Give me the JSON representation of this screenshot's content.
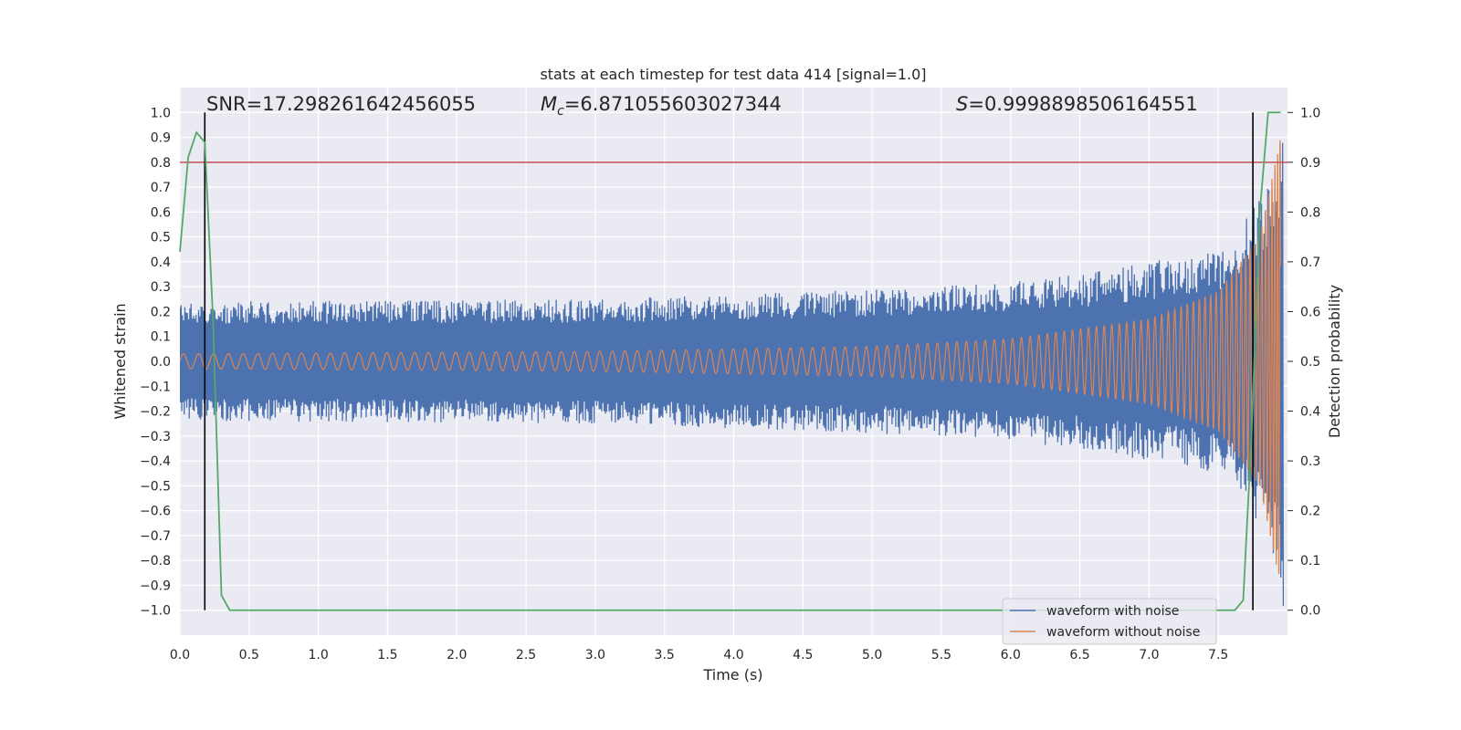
{
  "chart_data": {
    "type": "line",
    "title": "stats at each timestep for test data 414 [signal=1.0]",
    "xlabel": "Time (s)",
    "ylabel_left": "Whitened strain",
    "ylabel_right": "Detection probability",
    "xlim": [
      0.0,
      8.0
    ],
    "ylim_left": [
      -1.1,
      1.1
    ],
    "ylim_right": [
      -0.05,
      1.05
    ],
    "x_ticks": [
      "0.0",
      "0.5",
      "1.0",
      "1.5",
      "2.0",
      "2.5",
      "3.0",
      "3.5",
      "4.0",
      "4.5",
      "5.0",
      "5.5",
      "6.0",
      "6.5",
      "7.0",
      "7.5"
    ],
    "y_ticks_left": [
      "1.0",
      "0.9",
      "0.8",
      "0.7",
      "0.6",
      "0.5",
      "0.4",
      "0.3",
      "0.2",
      "0.1",
      "0.0",
      "−0.1",
      "−0.2",
      "−0.3",
      "−0.4",
      "−0.5",
      "−0.6",
      "−0.7",
      "−0.8",
      "−0.9",
      "−1.0"
    ],
    "y_ticks_right": [
      "1.0",
      "0.9",
      "0.8",
      "0.7",
      "0.6",
      "0.5",
      "0.4",
      "0.3",
      "0.2",
      "0.1",
      "0.0"
    ],
    "grid": true,
    "legend_position": "lower-right",
    "annotations": {
      "snr": "SNR=17.298261642456055",
      "mc_symbol": "M",
      "mc_sub": "c",
      "mc_value": "=6.871055603027344",
      "s_symbol": "S",
      "s_value": "=0.9998898506164551"
    },
    "vlines_x": [
      0.18,
      7.75
    ],
    "threshold_probability": 0.9,
    "series": [
      {
        "name": "waveform with noise",
        "color": "#4c72b0",
        "envelope": [
          {
            "x": 0.0,
            "amp": 0.24
          },
          {
            "x": 3.0,
            "amp": 0.25
          },
          {
            "x": 5.5,
            "amp": 0.3
          },
          {
            "x": 6.5,
            "amp": 0.35
          },
          {
            "x": 7.5,
            "amp": 0.45
          },
          {
            "x": 7.85,
            "amp": 0.7
          },
          {
            "x": 7.97,
            "amp": 1.0
          }
        ]
      },
      {
        "name": "waveform without noise",
        "color": "#dd8452",
        "envelope": [
          {
            "x": 0.0,
            "amp": 0.03
          },
          {
            "x": 3.0,
            "amp": 0.04
          },
          {
            "x": 5.0,
            "amp": 0.06
          },
          {
            "x": 6.0,
            "amp": 0.09
          },
          {
            "x": 7.0,
            "amp": 0.17
          },
          {
            "x": 7.5,
            "amp": 0.28
          },
          {
            "x": 7.8,
            "amp": 0.5
          },
          {
            "x": 7.95,
            "amp": 0.9
          }
        ]
      },
      {
        "name": "detection probability",
        "color": "#55a868",
        "axis": "right",
        "x": [
          0.0,
          0.06,
          0.12,
          0.18,
          0.24,
          0.3,
          0.36,
          0.4,
          7.55,
          7.62,
          7.68,
          7.74,
          7.8,
          7.86,
          7.92,
          7.95
        ],
        "y": [
          0.72,
          0.91,
          0.96,
          0.94,
          0.58,
          0.03,
          0.0,
          0.0,
          0.0,
          0.0,
          0.02,
          0.35,
          0.8,
          1.0,
          1.0,
          1.0
        ]
      }
    ],
    "threshold_color": "#c44e52",
    "vline_color": "#000000"
  }
}
